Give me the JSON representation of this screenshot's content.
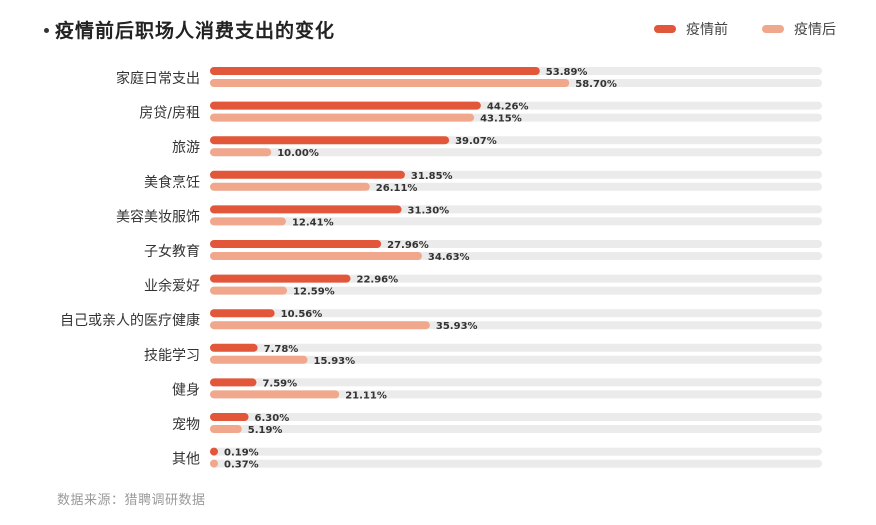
{
  "header": {
    "title": "疫情前后职场人消费支出的变化"
  },
  "legend": {
    "items": [
      {
        "label": "疫情前",
        "color": "#e2563a"
      },
      {
        "label": "疫情后",
        "color": "#f0a78c"
      }
    ]
  },
  "source": "数据来源：猎聘调研数据",
  "colors": {
    "before": "#e2563a",
    "after": "#f0a78c",
    "track": "#ebebeb"
  },
  "chart_data": {
    "type": "bar",
    "orientation": "horizontal",
    "title": "疫情前后职场人消费支出的变化",
    "categories": [
      "家庭日常支出",
      "房贷/房租",
      "旅游",
      "美食烹饪",
      "美容美妆服饰",
      "子女教育",
      "业余爱好",
      "自己或亲人的医疗健康",
      "技能学习",
      "健身",
      "宠物",
      "其他"
    ],
    "series": [
      {
        "name": "疫情前",
        "values": [
          53.89,
          44.26,
          39.07,
          31.85,
          31.3,
          27.96,
          22.96,
          10.56,
          7.78,
          7.59,
          6.3,
          0.19
        ],
        "labels": [
          "53.89%",
          "44.26%",
          "39.07%",
          "31.85%",
          "31.30%",
          "27.96%",
          "22.96%",
          "10.56%",
          "7.78%",
          "7.59%",
          "6.30%",
          "0.19%"
        ]
      },
      {
        "name": "疫情后",
        "values": [
          58.7,
          43.15,
          10.0,
          26.11,
          12.41,
          34.63,
          12.59,
          35.93,
          15.93,
          21.11,
          5.19,
          0.37
        ],
        "labels": [
          "58.70%",
          "43.15%",
          "10.00%",
          "26.11%",
          "12.41%",
          "34.63%",
          "12.59%",
          "35.93%",
          "15.93%",
          "21.11%",
          "5.19%",
          "0.37%"
        ]
      }
    ],
    "xlim": [
      0,
      100
    ],
    "grid": false,
    "legend_position": "top-right"
  }
}
